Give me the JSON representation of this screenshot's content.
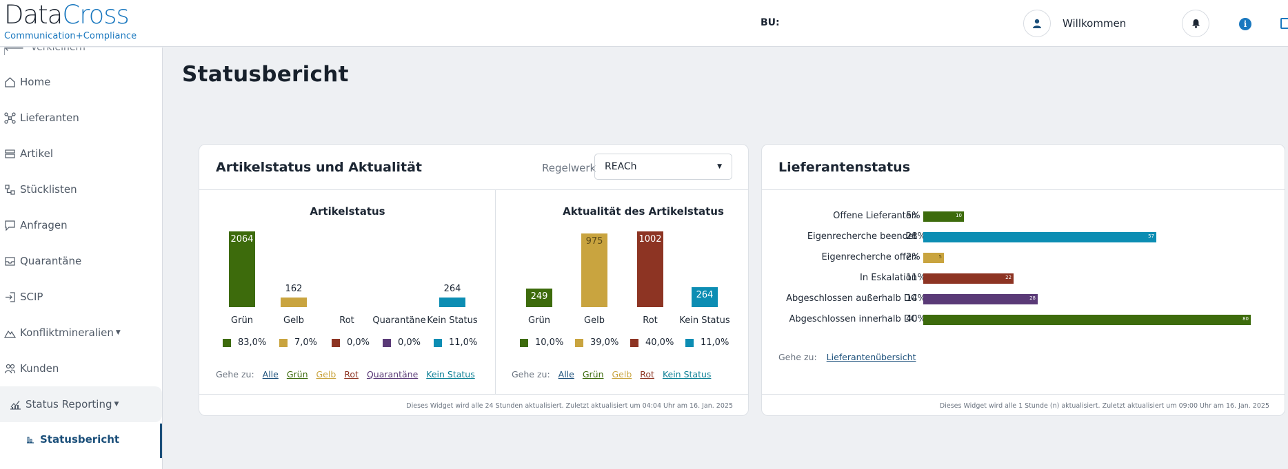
{
  "header": {
    "logo_data": "Data",
    "logo_cross": "Cross",
    "logo_sub": "Communication+Compliance",
    "bu_label": "BU:",
    "welcome": "Willkommen"
  },
  "sidebar": {
    "collapse_label": "Verkleinern",
    "items": [
      {
        "label": "Home",
        "icon": "home-icon"
      },
      {
        "label": "Lieferanten",
        "icon": "network-icon"
      },
      {
        "label": "Artikel",
        "icon": "box-icon"
      },
      {
        "label": "Stücklisten",
        "icon": "tree-icon"
      },
      {
        "label": "Anfragen",
        "icon": "chat-icon"
      },
      {
        "label": "Quarantäne",
        "icon": "tray-icon"
      },
      {
        "label": "SCIP",
        "icon": "login-icon"
      },
      {
        "label": "Konfliktmineralien",
        "icon": "mountain-icon"
      },
      {
        "label": "Kunden",
        "icon": "people-icon"
      }
    ],
    "status_reporting": "Status Reporting",
    "statusbericht": "Statusbericht"
  },
  "page_title": "Statusbericht",
  "colors": {
    "gruen": "#3d6b0c",
    "gelb": "#c9a43f",
    "rot": "#8d3423",
    "quarantaene": "#5a3a77",
    "kein_status": "#0c8db3",
    "accent": "#1a78bf"
  },
  "card_artikel": {
    "title": "Artikelstatus und Aktualität",
    "regelwerk_label": "Regelwerk",
    "regelwerk_value": "REACh",
    "footer": "Dieses Widget wird alle 24 Stunden aktualisiert. Zuletzt aktualisiert um 04:04 Uhr am 16. Jan. 2025",
    "goto_label": "Gehe zu:",
    "goto_links_left": [
      "Alle",
      "Grün",
      "Gelb",
      "Rot",
      "Quarantäne",
      "Kein Status"
    ],
    "goto_links_right": [
      "Alle",
      "Grün",
      "Gelb",
      "Rot",
      "Kein Status"
    ]
  },
  "chart_data": [
    {
      "type": "bar",
      "title": "Artikelstatus",
      "categories": [
        "Grün",
        "Gelb",
        "Rot",
        "Quarantäne",
        "Kein Status"
      ],
      "values": [
        2064,
        162,
        null,
        null,
        264
      ],
      "value_labels": [
        "2064",
        "162",
        "",
        "",
        "264"
      ],
      "legend": [
        "83,0%",
        "7,0%",
        "0,0%",
        "0,0%",
        "11,0%"
      ],
      "legend_colors": [
        "#3d6b0c",
        "#c9a43f",
        "#8d3423",
        "#5a3a77",
        "#0c8db3"
      ]
    },
    {
      "type": "bar",
      "title": "Aktualität des Artikelstatus",
      "categories": [
        "Grün",
        "Gelb",
        "Rot",
        "Kein Status"
      ],
      "values": [
        249,
        975,
        1002,
        264
      ],
      "value_labels": [
        "249",
        "975",
        "1002",
        "264"
      ],
      "legend": [
        "10,0%",
        "39,0%",
        "40,0%",
        "11,0%"
      ],
      "legend_colors": [
        "#3d6b0c",
        "#c9a43f",
        "#8d3423",
        "#0c8db3"
      ]
    },
    {
      "type": "bar",
      "orientation": "horizontal",
      "title": "Lieferantenstatus",
      "categories": [
        "Offene Lieferanten",
        "Eigenrecherche beendet",
        "Eigenrecherche offen",
        "In Eskalation",
        "Abgeschlossen außerhalb DC",
        "Abgeschlossen innerhalb DC"
      ],
      "percent_labels": [
        "5%",
        "28%",
        "2%",
        "11%",
        "14%",
        "40%"
      ],
      "values": [
        10,
        57,
        5,
        22,
        28,
        80
      ],
      "value_labels": [
        "10",
        "57",
        "5",
        "22",
        "28",
        "80"
      ],
      "colors": [
        "#3d6b0c",
        "#0c8db3",
        "#c9a43f",
        "#8d3423",
        "#5a3a77",
        "#3d6b0c"
      ]
    }
  ],
  "card_lieferanten": {
    "title": "Lieferantenstatus",
    "goto_label": "Gehe zu:",
    "goto_link": "Lieferantenübersicht",
    "footer": "Dieses Widget wird alle 1 Stunde (n) aktualisiert. Zuletzt aktualisiert um 09:00 Uhr am 16. Jan. 2025"
  }
}
